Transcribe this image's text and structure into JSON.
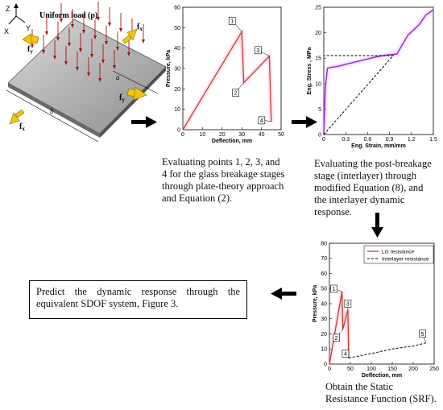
{
  "plate": {
    "title": "Uniform load (p)",
    "axes": {
      "z": "Z",
      "y": "Y",
      "x": "X"
    },
    "forces": [
      "f",
      "f",
      "f",
      "f"
    ],
    "subscripts": {
      "fx": "x",
      "fy": "y"
    },
    "dims": {
      "a": "a",
      "b": "b"
    }
  },
  "charts": [
    {
      "id": "pressure_deflection",
      "type": "line",
      "ylabel": "Pressure, kPa",
      "xlabel": "Deflection, mm",
      "xlim": [
        0,
        50
      ],
      "ylim": [
        0,
        60
      ],
      "xticks": [
        "0",
        "10",
        "20",
        "30",
        "40",
        "50"
      ],
      "yticks": [
        "0",
        "10",
        "20",
        "30",
        "40",
        "50",
        "60"
      ],
      "points": [
        {
          "label": "1",
          "x": 30,
          "y": 48
        },
        {
          "label": "2",
          "x": 31,
          "y": 23
        },
        {
          "label": "3",
          "x": 44,
          "y": 36
        },
        {
          "label": "4",
          "x": 45,
          "y": 4
        }
      ]
    },
    {
      "id": "stress_strain",
      "type": "line",
      "ylabel": "Eng. Stress , MPa",
      "xlabel": "Eng. Strain, mm/mm",
      "xlim": [
        0,
        1.5
      ],
      "ylim": [
        0,
        25
      ],
      "xticks": [
        "0",
        "0.3",
        "0.6",
        "0.9",
        "1.2",
        "1.5"
      ],
      "yticks": [
        "0",
        "5",
        "10",
        "15",
        "20",
        "25"
      ],
      "curve": [
        [
          0,
          0
        ],
        [
          0.02,
          9
        ],
        [
          0.05,
          13
        ],
        [
          0.1,
          13.2
        ],
        [
          0.2,
          13.4
        ],
        [
          0.3,
          13.8
        ],
        [
          0.5,
          14.5
        ],
        [
          0.7,
          15.2
        ],
        [
          0.85,
          15.6
        ],
        [
          1.0,
          15.8
        ],
        [
          1.07,
          17.5
        ],
        [
          1.15,
          19.5
        ],
        [
          1.3,
          21.5
        ],
        [
          1.4,
          23.5
        ],
        [
          1.5,
          24.5
        ]
      ],
      "bilinear": [
        [
          0,
          0
        ],
        [
          0.95,
          15.5
        ],
        [
          0,
          15.5
        ]
      ]
    },
    {
      "id": "srf",
      "type": "line",
      "ylabel": "Pressure, kPa",
      "xlabel": "Deflection, mm",
      "xlim": [
        0,
        250
      ],
      "ylim": [
        0,
        80
      ],
      "xticks": [
        "0",
        "50",
        "100",
        "150",
        "200",
        "250"
      ],
      "yticks": [
        "0",
        "10",
        "20",
        "30",
        "40",
        "50",
        "60",
        "70",
        "80"
      ],
      "legend": [
        "LG resistance",
        "Interlayer resistance"
      ],
      "lg_curve": [
        [
          0,
          0
        ],
        [
          30,
          48
        ],
        [
          32,
          23
        ],
        [
          44,
          36
        ],
        [
          46,
          4
        ]
      ],
      "interlayer_curve": [
        [
          46,
          4
        ],
        [
          100,
          7
        ],
        [
          150,
          10
        ],
        [
          200,
          12
        ],
        [
          230,
          14
        ]
      ],
      "points": [
        {
          "label": "1",
          "x": 30,
          "y": 48
        },
        {
          "label": "2",
          "x": 32,
          "y": 23
        },
        {
          "label": "3",
          "x": 44,
          "y": 36
        },
        {
          "label": "4",
          "x": 46,
          "y": 4
        },
        {
          "label": "5",
          "x": 230,
          "y": 14
        }
      ]
    }
  ],
  "captions": {
    "step1": "Evaluating points 1, 2, 3, and 4 for the glass breakage stages through plate-theory approach and Equation (2).",
    "step2": "Evaluating the post-breakage stage (interlayer) through modified Equation (8), and the interlayer dynamic response.",
    "step3": "Obtain the Static Resistance Function (SRF).",
    "step4": "Predict the dynamic response through the equivalent SDOF system, Figure 3."
  },
  "colors": {
    "curve": "#c2412a",
    "arrow_yellow": "#f1c40f",
    "load_arrow": "#a31515"
  }
}
